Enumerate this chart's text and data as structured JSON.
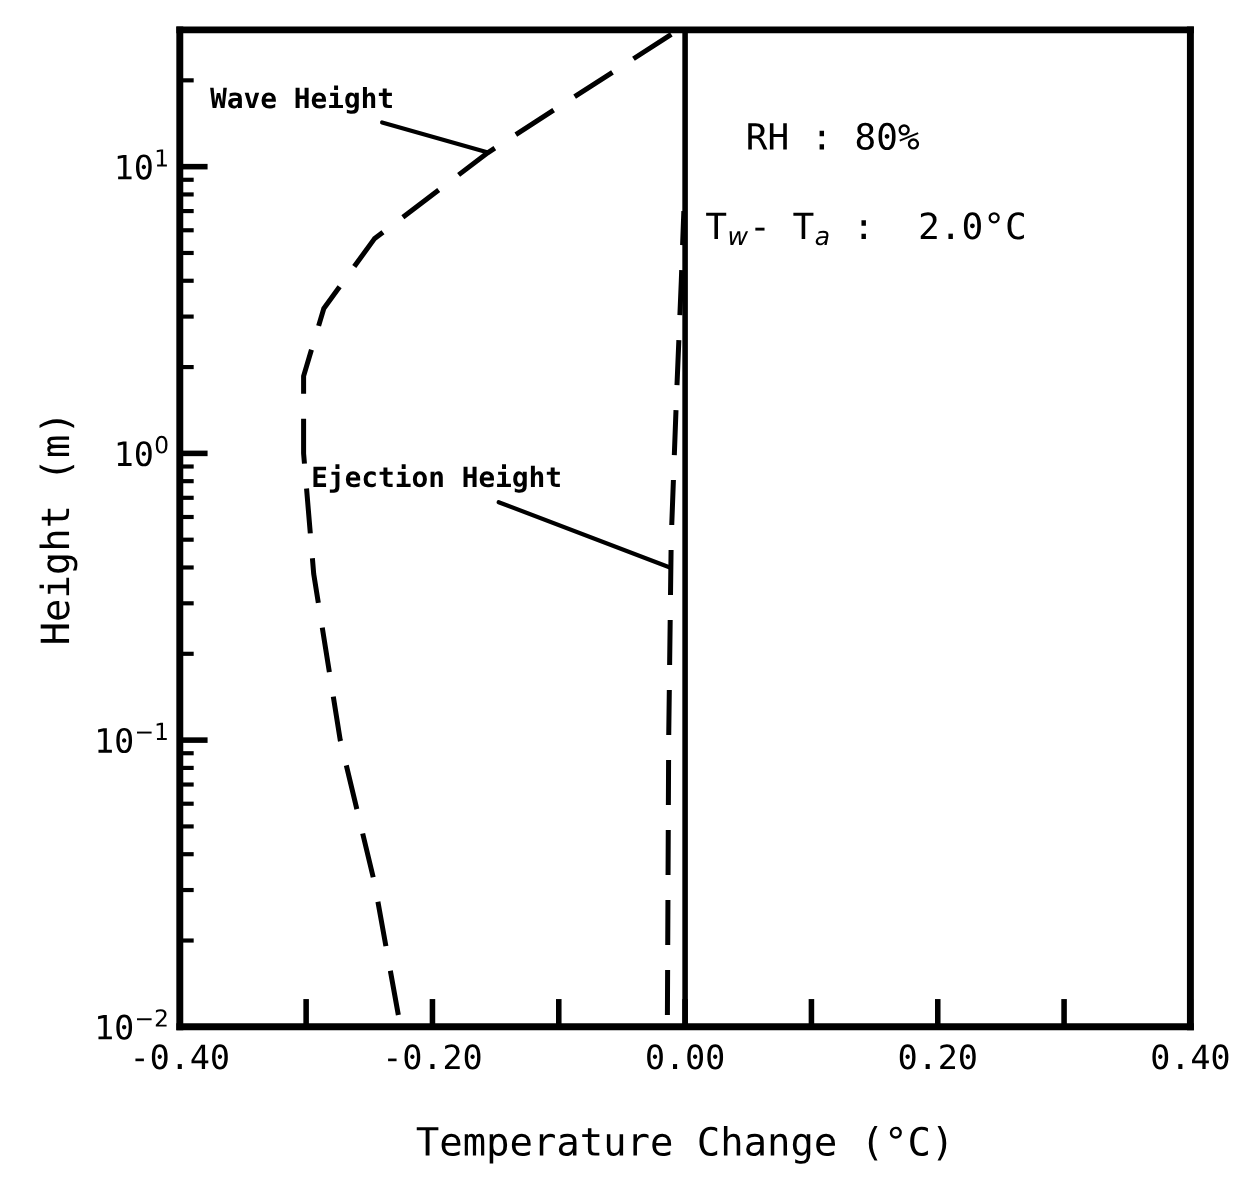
{
  "chart_data": {
    "type": "line",
    "xlabel": "Temperature Change (°C)",
    "ylabel": "Height (m)",
    "log": "y",
    "xlim": [
      -0.4,
      0.4
    ],
    "ylim": [
      0.01,
      30
    ],
    "xticks": [
      {
        "value": -0.4,
        "label": "-0.40"
      },
      {
        "value": -0.3,
        "label": null
      },
      {
        "value": -0.2,
        "label": "-0.20"
      },
      {
        "value": -0.1,
        "label": null
      },
      {
        "value": 0,
        "label": "0.00"
      },
      {
        "value": 0.1,
        "label": null
      },
      {
        "value": 0.2,
        "label": "0.20"
      },
      {
        "value": 0.3,
        "label": null
      },
      {
        "value": 0.4,
        "label": "0.40"
      }
    ],
    "yticks": [
      {
        "value": 0.01,
        "label": "10$^{−2}$"
      },
      {
        "value": 0.1,
        "label": "10$^{−1}$"
      },
      {
        "value": 1,
        "label": "10$^{0}$"
      },
      {
        "value": 10,
        "label": "10$^{1}$"
      }
    ],
    "grid": false,
    "legend": false,
    "marker": "none",
    "line_style": "dashed",
    "series": [
      {
        "color": "#000000",
        "x": [
          -0.227,
          -0.246,
          -0.273,
          -0.294,
          -0.302,
          -0.302,
          -0.286,
          -0.246,
          -0.156,
          -0.008
        ],
        "values": [
          0.011,
          0.032,
          0.1,
          0.38,
          1.0,
          1.86,
          3.2,
          5.6,
          11.2,
          29.5
        ]
      },
      {
        "color": "#000000",
        "x": [
          -0.014,
          -0.013,
          -0.011,
          -0.007,
          -0.003,
          -0.001
        ],
        "values": [
          0.011,
          0.1,
          0.5,
          1.5,
          4,
          7
        ]
      }
    ],
    "ref_lines": [
      {
        "axis": "x",
        "value": 0,
        "color": "#000000",
        "line_style": "solid"
      }
    ],
    "annotations": [
      {
        "text": "Wave Height",
        "x": -0.156,
        "y": 11.2
      },
      {
        "text": "Ejection Height",
        "x": -0.012,
        "y": 0.4
      },
      "RH : 80%",
      "T$_{w}$- T$_{a}$ :  2.0°C"
    ]
  }
}
